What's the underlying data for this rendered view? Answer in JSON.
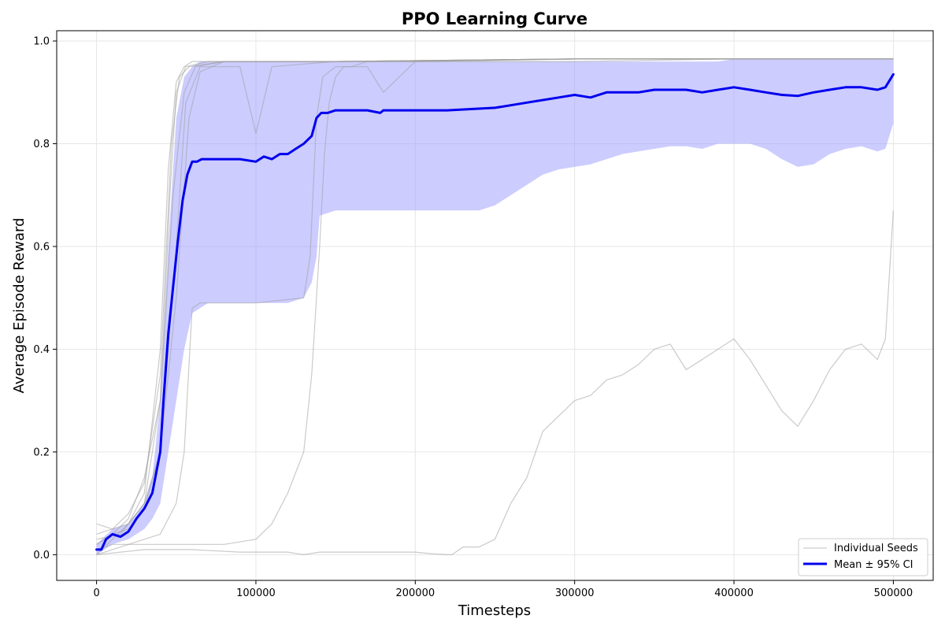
{
  "chart_data": {
    "type": "line",
    "title": "PPO Learning Curve",
    "xlabel": "Timesteps",
    "ylabel": "Average Episode Reward",
    "xlim": [
      -25000,
      525000
    ],
    "ylim": [
      -0.05,
      1.02
    ],
    "xticks": [
      0,
      100000,
      200000,
      300000,
      400000,
      500000
    ],
    "yticks": [
      0.0,
      0.2,
      0.4,
      0.6,
      0.8,
      1.0
    ],
    "xtick_labels": [
      "0",
      "100000",
      "200000",
      "300000",
      "400000",
      "500000"
    ],
    "ytick_labels": [
      "0.0",
      "0.2",
      "0.4",
      "0.6",
      "0.8",
      "1.0"
    ],
    "grid": true,
    "legend": {
      "position": "lower-right",
      "entries": [
        "Individual Seeds",
        "Mean ± 95% CI"
      ]
    },
    "colors": {
      "mean": "#0000ee",
      "band": "#9999ff",
      "seed": "#9e9e9e"
    },
    "seeds": [
      {
        "x": [
          0,
          10000,
          20000,
          30000,
          40000,
          45000,
          50000,
          55000,
          60000,
          80000,
          120000,
          200000,
          300000,
          400000,
          500000
        ],
        "y": [
          0.0,
          0.03,
          0.06,
          0.12,
          0.4,
          0.75,
          0.92,
          0.95,
          0.96,
          0.96,
          0.96,
          0.96,
          0.96,
          0.965,
          0.965
        ]
      },
      {
        "x": [
          0,
          10000,
          20000,
          30000,
          40000,
          48000,
          55000,
          62000,
          80000,
          150000,
          300000,
          500000
        ],
        "y": [
          0.02,
          0.04,
          0.07,
          0.15,
          0.3,
          0.7,
          0.9,
          0.95,
          0.96,
          0.96,
          0.965,
          0.965
        ]
      },
      {
        "x": [
          0,
          10000,
          20000,
          30000,
          40000,
          50000,
          58000,
          65000,
          80000,
          150000,
          300000,
          500000
        ],
        "y": [
          0.04,
          0.05,
          0.06,
          0.1,
          0.2,
          0.5,
          0.85,
          0.94,
          0.96,
          0.96,
          0.965,
          0.965
        ]
      },
      {
        "x": [
          0,
          10000,
          20000,
          30000,
          40000,
          47000,
          52000,
          58000,
          80000,
          150000,
          300000,
          500000
        ],
        "y": [
          0.06,
          0.05,
          0.08,
          0.14,
          0.35,
          0.8,
          0.93,
          0.95,
          0.96,
          0.96,
          0.965,
          0.965
        ]
      },
      {
        "x": [
          0,
          15000,
          30000,
          40000,
          46000,
          50000,
          56000,
          70000,
          150000,
          300000,
          500000
        ],
        "y": [
          0.03,
          0.04,
          0.1,
          0.3,
          0.7,
          0.9,
          0.95,
          0.96,
          0.96,
          0.965,
          0.965
        ]
      },
      {
        "x": [
          0,
          10000,
          20000,
          30000,
          40000,
          50000,
          56000,
          65000,
          90000,
          100000,
          110000,
          150000,
          300000,
          500000
        ],
        "y": [
          0.02,
          0.04,
          0.05,
          0.09,
          0.2,
          0.6,
          0.88,
          0.95,
          0.95,
          0.82,
          0.95,
          0.96,
          0.965,
          0.965
        ]
      },
      {
        "x": [
          0,
          10000,
          20000,
          30000,
          40000,
          50000,
          55000,
          60000,
          65000,
          70000,
          100000,
          130000,
          134000,
          138000,
          142000,
          150000,
          170000,
          180000,
          200000,
          300000,
          500000
        ],
        "y": [
          0.01,
          0.02,
          0.02,
          0.03,
          0.04,
          0.1,
          0.2,
          0.48,
          0.49,
          0.49,
          0.49,
          0.5,
          0.58,
          0.85,
          0.93,
          0.95,
          0.95,
          0.9,
          0.96,
          0.965,
          0.965
        ]
      },
      {
        "x": [
          0,
          20000,
          40000,
          60000,
          80000,
          100000,
          110000,
          120000,
          130000,
          135000,
          140000,
          143000,
          146000,
          150000,
          155000,
          160000,
          170000,
          200000,
          300000,
          500000
        ],
        "y": [
          0.0,
          0.02,
          0.02,
          0.02,
          0.02,
          0.03,
          0.06,
          0.12,
          0.2,
          0.35,
          0.6,
          0.78,
          0.88,
          0.93,
          0.95,
          0.95,
          0.96,
          0.96,
          0.965,
          0.965
        ]
      },
      {
        "x": [
          0,
          30000,
          60000,
          90000,
          120000,
          130000,
          140000,
          160000,
          180000,
          200000,
          210000,
          220000,
          223000,
          230000,
          240000,
          250000,
          260000,
          270000,
          280000,
          290000,
          300000,
          310000,
          320000,
          330000,
          340000,
          350000,
          360000,
          370000,
          380000,
          390000,
          400000,
          410000,
          420000,
          430000,
          440000,
          450000,
          460000,
          470000,
          480000,
          490000,
          495000,
          500000
        ],
        "y": [
          0.0,
          0.01,
          0.01,
          0.005,
          0.005,
          0.0,
          0.005,
          0.005,
          0.005,
          0.005,
          0.002,
          0.0,
          0.0,
          0.015,
          0.015,
          0.03,
          0.1,
          0.15,
          0.24,
          0.27,
          0.3,
          0.31,
          0.34,
          0.35,
          0.37,
          0.4,
          0.41,
          0.36,
          0.38,
          0.4,
          0.42,
          0.38,
          0.33,
          0.28,
          0.25,
          0.3,
          0.36,
          0.4,
          0.41,
          0.38,
          0.42,
          0.67
        ]
      }
    ],
    "mean": {
      "x": [
        0,
        3000,
        6000,
        10000,
        15000,
        20000,
        25000,
        30000,
        35000,
        40000,
        42000,
        45000,
        48000,
        51000,
        54000,
        57000,
        60000,
        63000,
        66000,
        70000,
        80000,
        90000,
        100000,
        105000,
        110000,
        115000,
        120000,
        125000,
        130000,
        135000,
        138000,
        141000,
        145000,
        150000,
        160000,
        170000,
        178000,
        180000,
        200000,
        220000,
        250000,
        270000,
        290000,
        300000,
        310000,
        320000,
        340000,
        350000,
        370000,
        380000,
        390000,
        400000,
        410000,
        420000,
        430000,
        440000,
        450000,
        460000,
        470000,
        480000,
        490000,
        495000,
        500000
      ],
      "y": [
        0.01,
        0.01,
        0.03,
        0.04,
        0.035,
        0.045,
        0.07,
        0.09,
        0.12,
        0.2,
        0.3,
        0.43,
        0.52,
        0.61,
        0.69,
        0.74,
        0.765,
        0.765,
        0.77,
        0.77,
        0.77,
        0.77,
        0.765,
        0.775,
        0.77,
        0.78,
        0.78,
        0.79,
        0.8,
        0.815,
        0.85,
        0.86,
        0.86,
        0.865,
        0.865,
        0.865,
        0.86,
        0.865,
        0.865,
        0.865,
        0.87,
        0.88,
        0.89,
        0.895,
        0.89,
        0.9,
        0.9,
        0.905,
        0.905,
        0.9,
        0.905,
        0.91,
        0.905,
        0.9,
        0.895,
        0.893,
        0.9,
        0.905,
        0.91,
        0.91,
        0.905,
        0.91,
        0.935
      ]
    },
    "ci_band": {
      "x": [
        0,
        10000,
        20000,
        30000,
        35000,
        40000,
        45000,
        50000,
        55000,
        60000,
        65000,
        70000,
        80000,
        100000,
        120000,
        130000,
        135000,
        138000,
        140000,
        150000,
        160000,
        180000,
        200000,
        220000,
        240000,
        250000,
        260000,
        270000,
        280000,
        290000,
        300000,
        310000,
        320000,
        330000,
        340000,
        350000,
        360000,
        370000,
        380000,
        390000,
        400000,
        410000,
        420000,
        430000,
        440000,
        450000,
        460000,
        470000,
        480000,
        490000,
        495000,
        500000
      ],
      "lower": [
        0.0,
        0.02,
        0.03,
        0.05,
        0.07,
        0.1,
        0.2,
        0.3,
        0.4,
        0.47,
        0.48,
        0.49,
        0.49,
        0.49,
        0.49,
        0.5,
        0.53,
        0.58,
        0.66,
        0.67,
        0.67,
        0.67,
        0.67,
        0.67,
        0.67,
        0.68,
        0.7,
        0.72,
        0.74,
        0.75,
        0.755,
        0.76,
        0.77,
        0.78,
        0.785,
        0.79,
        0.795,
        0.795,
        0.79,
        0.8,
        0.8,
        0.8,
        0.79,
        0.77,
        0.755,
        0.76,
        0.78,
        0.79,
        0.795,
        0.785,
        0.79,
        0.84
      ],
      "upper": [
        0.02,
        0.05,
        0.06,
        0.1,
        0.15,
        0.3,
        0.6,
        0.85,
        0.93,
        0.95,
        0.96,
        0.96,
        0.96,
        0.96,
        0.96,
        0.96,
        0.96,
        0.96,
        0.96,
        0.96,
        0.96,
        0.96,
        0.96,
        0.96,
        0.96,
        0.96,
        0.96,
        0.96,
        0.96,
        0.96,
        0.96,
        0.96,
        0.96,
        0.96,
        0.96,
        0.96,
        0.96,
        0.96,
        0.96,
        0.96,
        0.965,
        0.965,
        0.965,
        0.965,
        0.965,
        0.965,
        0.965,
        0.965,
        0.965,
        0.965,
        0.965,
        0.965
      ]
    }
  }
}
